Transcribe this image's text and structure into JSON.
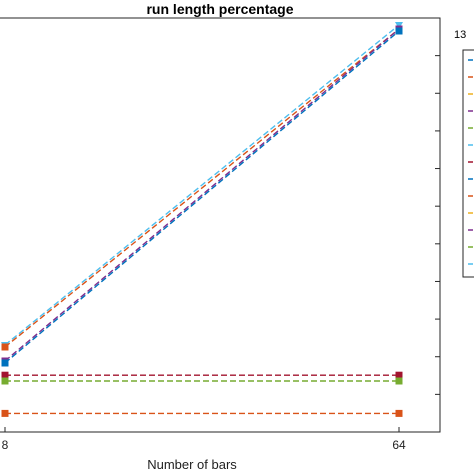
{
  "chart_data": {
    "type": "line",
    "title": "run length percentage",
    "xlabel": "Number of bars",
    "ylabel": "",
    "x": [
      8,
      64
    ],
    "x_ticks": [
      "8",
      "64"
    ],
    "xlim": [
      0,
      70
    ],
    "ylim": [
      0,
      1
    ],
    "grid": false,
    "legend_title": "13",
    "legend_position": "right",
    "series": [
      {
        "color": "#4dbeee",
        "marker": "triangle-down",
        "values": [
          0.2,
          1.0
        ]
      },
      {
        "color": "#d95319",
        "marker": "square",
        "values": [
          0.195,
          0.99
        ]
      },
      {
        "color": "#7e2f8e",
        "marker": "square",
        "values": [
          0.16,
          0.99
        ]
      },
      {
        "color": "#0072bd",
        "marker": "square",
        "values": [
          0.155,
          0.985
        ]
      },
      {
        "color": "#a2142f",
        "marker": "square",
        "values": [
          0.1245,
          0.1245
        ]
      },
      {
        "color": "#77ac30",
        "marker": "square",
        "values": [
          0.11,
          0.11
        ]
      },
      {
        "color": "#d95319",
        "marker": "square",
        "values": [
          0.029,
          0.029
        ]
      }
    ],
    "legend_colors": [
      "#0072bd",
      "#d95319",
      "#edb120",
      "#7e2f8e",
      "#77ac30",
      "#4dbeee",
      "#a2142f",
      "#0072bd",
      "#d95319",
      "#edb120",
      "#7e2f8e",
      "#77ac30",
      "#4dbeee"
    ]
  }
}
